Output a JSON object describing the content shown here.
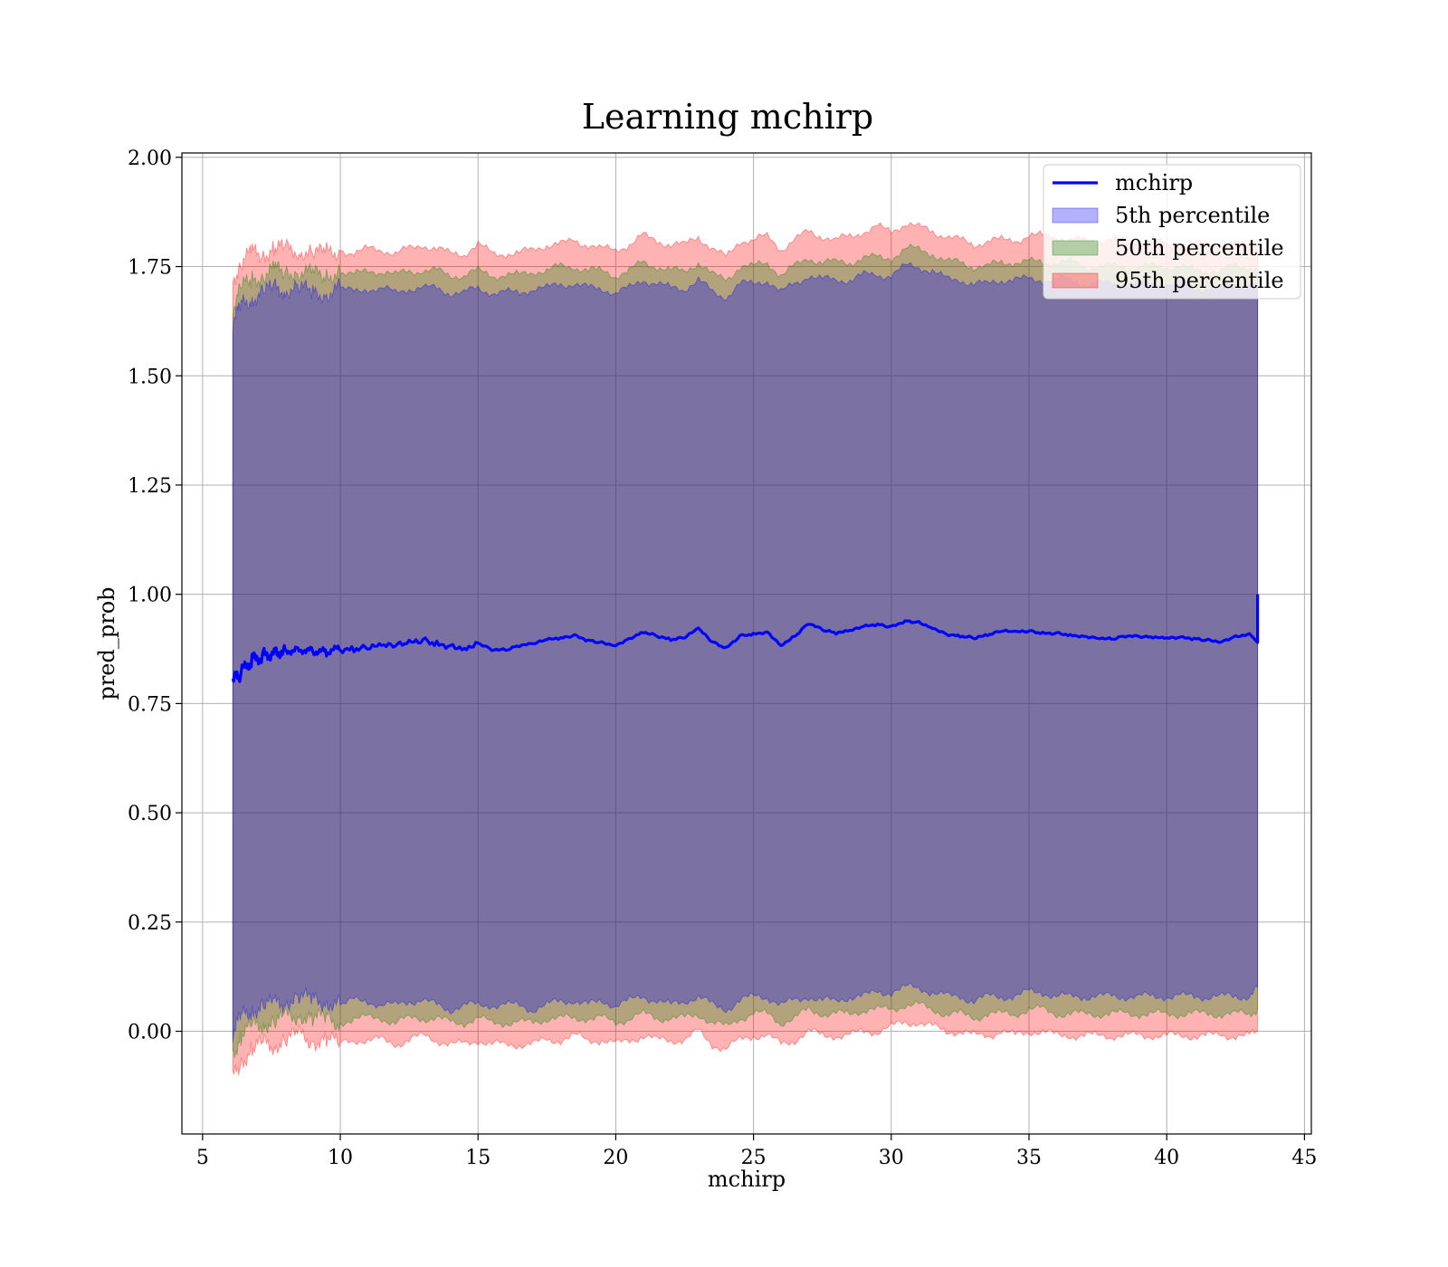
{
  "chart_data": {
    "type": "line",
    "title": "Learning mchirp",
    "xlabel": "mchirp",
    "ylabel": "pred_prob",
    "xlim": [
      4.25,
      45.25
    ],
    "ylim": [
      -0.235,
      2.01
    ],
    "xticks": [
      5,
      10,
      15,
      20,
      25,
      30,
      35,
      40,
      45
    ],
    "xtick_labels": [
      "5",
      "10",
      "15",
      "20",
      "25",
      "30",
      "35",
      "40",
      "45"
    ],
    "yticks": [
      0.0,
      0.25,
      0.5,
      0.75,
      1.0,
      1.25,
      1.5,
      1.75,
      2.0
    ],
    "ytick_labels": [
      "0.00",
      "0.25",
      "0.50",
      "0.75",
      "1.00",
      "1.25",
      "1.50",
      "1.75",
      "2.00"
    ],
    "grid": true,
    "legend_position": "top-right",
    "x": [
      6.1,
      6.4,
      6.8,
      7.2,
      7.6,
      8.0,
      8.5,
      9.0,
      9.5,
      10.0,
      10.5,
      11.0,
      11.5,
      12.0,
      12.5,
      13.0,
      13.5,
      14.0,
      14.5,
      15.0,
      15.5,
      16.0,
      16.5,
      17.0,
      17.5,
      18.0,
      18.5,
      19.0,
      19.5,
      20.0,
      20.5,
      21.0,
      21.5,
      22.0,
      22.5,
      23.0,
      23.5,
      24.0,
      24.5,
      25.0,
      25.5,
      26.0,
      26.5,
      27.0,
      27.5,
      28.0,
      28.5,
      29.0,
      29.5,
      30.0,
      30.5,
      31.0,
      31.5,
      32.0,
      32.5,
      33.0,
      33.5,
      34.0,
      34.5,
      35.0,
      35.5,
      36.0,
      36.5,
      37.0,
      37.5,
      38.0,
      38.5,
      39.0,
      39.5,
      40.0,
      40.5,
      41.0,
      41.5,
      42.0,
      42.5,
      43.0,
      43.3
    ],
    "series": [
      {
        "name": "mchirp",
        "kind": "line",
        "color": "#0000ff",
        "values": [
          0.8,
          0.82,
          0.85,
          0.86,
          0.87,
          0.87,
          0.875,
          0.87,
          0.868,
          0.875,
          0.873,
          0.876,
          0.878,
          0.88,
          0.885,
          0.895,
          0.887,
          0.885,
          0.88,
          0.89,
          0.875,
          0.872,
          0.882,
          0.885,
          0.895,
          0.898,
          0.905,
          0.895,
          0.89,
          0.885,
          0.9,
          0.915,
          0.905,
          0.895,
          0.9,
          0.92,
          0.89,
          0.875,
          0.905,
          0.91,
          0.915,
          0.885,
          0.905,
          0.935,
          0.918,
          0.91,
          0.915,
          0.925,
          0.93,
          0.925,
          0.94,
          0.937,
          0.925,
          0.91,
          0.905,
          0.9,
          0.905,
          0.915,
          0.912,
          0.915,
          0.91,
          0.912,
          0.908,
          0.905,
          0.902,
          0.898,
          0.905,
          0.902,
          0.9,
          0.898,
          0.9,
          0.898,
          0.895,
          0.893,
          0.905,
          0.91,
          1.0
        ]
      },
      {
        "name": "5th percentile",
        "kind": "band",
        "color": "#0000ff",
        "lower": [
          0.0,
          0.03,
          0.05,
          0.06,
          0.06,
          0.07,
          0.08,
          0.07,
          0.07,
          0.06,
          0.07,
          0.07,
          0.06,
          0.06,
          0.07,
          0.07,
          0.06,
          0.05,
          0.06,
          0.06,
          0.06,
          0.06,
          0.06,
          0.05,
          0.06,
          0.07,
          0.07,
          0.06,
          0.07,
          0.06,
          0.07,
          0.08,
          0.07,
          0.06,
          0.07,
          0.08,
          0.06,
          0.05,
          0.07,
          0.08,
          0.08,
          0.06,
          0.07,
          0.08,
          0.07,
          0.07,
          0.08,
          0.08,
          0.09,
          0.09,
          0.1,
          0.1,
          0.09,
          0.08,
          0.08,
          0.07,
          0.08,
          0.08,
          0.08,
          0.09,
          0.09,
          0.08,
          0.08,
          0.08,
          0.08,
          0.08,
          0.08,
          0.08,
          0.08,
          0.08,
          0.08,
          0.08,
          0.08,
          0.08,
          0.08,
          0.08,
          0.1
        ],
        "upper": [
          1.62,
          1.66,
          1.68,
          1.69,
          1.7,
          1.7,
          1.7,
          1.69,
          1.69,
          1.7,
          1.69,
          1.7,
          1.7,
          1.69,
          1.7,
          1.7,
          1.7,
          1.69,
          1.69,
          1.7,
          1.69,
          1.69,
          1.69,
          1.7,
          1.7,
          1.71,
          1.71,
          1.7,
          1.7,
          1.69,
          1.7,
          1.72,
          1.71,
          1.7,
          1.7,
          1.72,
          1.69,
          1.68,
          1.71,
          1.71,
          1.72,
          1.69,
          1.71,
          1.73,
          1.72,
          1.72,
          1.72,
          1.73,
          1.73,
          1.73,
          1.75,
          1.75,
          1.74,
          1.72,
          1.72,
          1.71,
          1.71,
          1.72,
          1.72,
          1.72,
          1.72,
          1.72,
          1.72,
          1.71,
          1.71,
          1.71,
          1.71,
          1.71,
          1.71,
          1.71,
          1.71,
          1.7,
          1.7,
          1.7,
          1.71,
          1.71,
          1.7
        ]
      },
      {
        "name": "50th percentile",
        "kind": "band",
        "color": "#008000",
        "lower": [
          -0.05,
          -0.01,
          0.01,
          0.02,
          0.02,
          0.03,
          0.04,
          0.03,
          0.03,
          0.02,
          0.03,
          0.03,
          0.03,
          0.02,
          0.03,
          0.03,
          0.03,
          0.02,
          0.02,
          0.03,
          0.02,
          0.02,
          0.02,
          0.02,
          0.03,
          0.03,
          0.03,
          0.03,
          0.03,
          0.02,
          0.03,
          0.04,
          0.03,
          0.03,
          0.03,
          0.04,
          0.02,
          0.01,
          0.03,
          0.04,
          0.04,
          0.02,
          0.03,
          0.05,
          0.04,
          0.04,
          0.04,
          0.05,
          0.05,
          0.05,
          0.06,
          0.06,
          0.05,
          0.04,
          0.04,
          0.03,
          0.04,
          0.04,
          0.04,
          0.05,
          0.05,
          0.04,
          0.04,
          0.04,
          0.04,
          0.04,
          0.04,
          0.04,
          0.04,
          0.04,
          0.04,
          0.04,
          0.04,
          0.04,
          0.04,
          0.04,
          0.05
        ],
        "upper": [
          1.66,
          1.7,
          1.72,
          1.73,
          1.74,
          1.74,
          1.74,
          1.73,
          1.73,
          1.74,
          1.73,
          1.74,
          1.74,
          1.73,
          1.74,
          1.74,
          1.74,
          1.73,
          1.73,
          1.74,
          1.73,
          1.73,
          1.73,
          1.74,
          1.74,
          1.75,
          1.75,
          1.74,
          1.74,
          1.73,
          1.74,
          1.76,
          1.75,
          1.74,
          1.74,
          1.76,
          1.73,
          1.72,
          1.75,
          1.75,
          1.76,
          1.73,
          1.75,
          1.77,
          1.76,
          1.76,
          1.76,
          1.77,
          1.77,
          1.77,
          1.79,
          1.79,
          1.78,
          1.76,
          1.76,
          1.75,
          1.75,
          1.76,
          1.76,
          1.76,
          1.76,
          1.76,
          1.76,
          1.75,
          1.75,
          1.75,
          1.75,
          1.75,
          1.75,
          1.75,
          1.75,
          1.74,
          1.74,
          1.74,
          1.75,
          1.75,
          1.74
        ]
      },
      {
        "name": "95th percentile",
        "kind": "band",
        "color": "#ff0000",
        "lower": [
          -0.11,
          -0.07,
          -0.04,
          -0.03,
          -0.03,
          -0.02,
          -0.01,
          -0.02,
          -0.02,
          -0.03,
          -0.02,
          -0.02,
          -0.02,
          -0.03,
          -0.02,
          -0.01,
          -0.02,
          -0.03,
          -0.03,
          -0.02,
          -0.03,
          -0.03,
          -0.03,
          -0.03,
          -0.02,
          -0.02,
          -0.01,
          -0.02,
          -0.02,
          -0.03,
          -0.02,
          -0.01,
          -0.02,
          -0.02,
          -0.02,
          0.0,
          -0.03,
          -0.04,
          -0.02,
          -0.01,
          -0.01,
          -0.03,
          -0.02,
          0.0,
          -0.01,
          -0.01,
          -0.01,
          0.0,
          0.0,
          0.01,
          0.02,
          0.02,
          0.01,
          0.0,
          0.0,
          -0.01,
          -0.01,
          0.0,
          -0.01,
          0.0,
          0.0,
          -0.01,
          -0.01,
          -0.01,
          -0.01,
          -0.01,
          -0.01,
          -0.01,
          -0.01,
          -0.01,
          -0.01,
          -0.01,
          -0.01,
          -0.01,
          -0.01,
          -0.01,
          0.0
        ],
        "upper": [
          1.72,
          1.76,
          1.78,
          1.78,
          1.79,
          1.79,
          1.79,
          1.78,
          1.78,
          1.79,
          1.78,
          1.79,
          1.79,
          1.78,
          1.79,
          1.8,
          1.79,
          1.78,
          1.78,
          1.8,
          1.78,
          1.78,
          1.78,
          1.79,
          1.8,
          1.8,
          1.81,
          1.8,
          1.79,
          1.79,
          1.8,
          1.82,
          1.81,
          1.8,
          1.8,
          1.82,
          1.79,
          1.77,
          1.81,
          1.81,
          1.82,
          1.79,
          1.81,
          1.83,
          1.82,
          1.81,
          1.82,
          1.83,
          1.84,
          1.83,
          1.85,
          1.84,
          1.83,
          1.82,
          1.81,
          1.8,
          1.81,
          1.81,
          1.81,
          1.82,
          1.82,
          1.82,
          1.81,
          1.81,
          1.81,
          1.81,
          1.81,
          1.81,
          1.81,
          1.8,
          1.8,
          1.8,
          1.8,
          1.8,
          1.8,
          1.8,
          1.8
        ]
      }
    ]
  }
}
